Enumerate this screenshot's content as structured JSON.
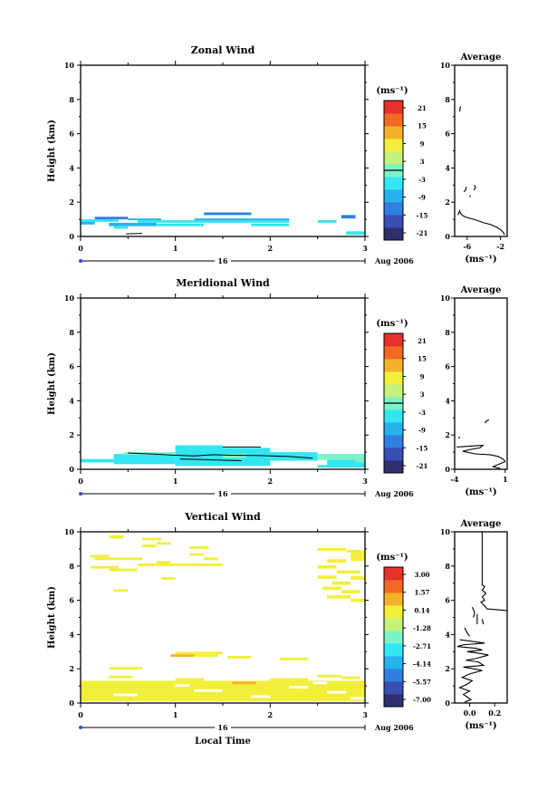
{
  "chart_data": [
    {
      "type": "heatmap",
      "title": "Zonal Wind",
      "ylabel": "Height (km)",
      "xlim": [
        0,
        3
      ],
      "ylim": [
        0,
        10
      ],
      "x_ticks": [
        "0",
        "1",
        "2",
        "3"
      ],
      "y_ticks": [
        "0",
        "2",
        "4",
        "6",
        "8",
        "10"
      ],
      "colorbar": {
        "unit": "(ms⁻¹)",
        "labels": [
          "21",
          "15",
          "9",
          "3",
          "-3",
          "-9",
          "-15",
          "-21"
        ],
        "range": [
          -24,
          24
        ],
        "zero_line": true
      },
      "cells": [
        {
          "x0": 0.0,
          "x1": 0.15,
          "y0": 0.7,
          "y1": 0.9,
          "v": -9
        },
        {
          "x0": 0.0,
          "x1": 0.4,
          "y0": 0.85,
          "y1": 1.0,
          "v": -6
        },
        {
          "x0": 0.15,
          "x1": 0.5,
          "y0": 1.0,
          "y1": 1.15,
          "v": -13
        },
        {
          "x0": 0.3,
          "x1": 0.8,
          "y0": 0.6,
          "y1": 0.8,
          "v": -7
        },
        {
          "x0": 0.35,
          "x1": 0.5,
          "y0": 0.45,
          "y1": 0.6,
          "v": -5
        },
        {
          "x0": 0.5,
          "x1": 0.85,
          "y0": 0.95,
          "y1": 1.05,
          "v": -10
        },
        {
          "x0": 0.6,
          "x1": 2.2,
          "y0": 0.8,
          "y1": 0.95,
          "v": -5
        },
        {
          "x0": 0.8,
          "x1": 1.3,
          "y0": 0.6,
          "y1": 0.75,
          "v": -4
        },
        {
          "x0": 1.3,
          "x1": 1.8,
          "y0": 1.25,
          "y1": 1.4,
          "v": -14
        },
        {
          "x0": 1.2,
          "x1": 2.2,
          "y0": 0.95,
          "y1": 1.05,
          "v": -9
        },
        {
          "x0": 1.8,
          "x1": 2.2,
          "y0": 0.6,
          "y1": 0.75,
          "v": -4
        },
        {
          "x0": 2.5,
          "x1": 2.7,
          "y0": 0.8,
          "y1": 0.95,
          "v": -6
        },
        {
          "x0": 2.75,
          "x1": 2.9,
          "y0": 1.05,
          "y1": 1.25,
          "v": -15
        },
        {
          "x0": 2.8,
          "x1": 3.0,
          "y0": 0.1,
          "y1": 0.3,
          "v": -5
        }
      ],
      "contours": [
        {
          "x": [
            0.48,
            0.65
          ],
          "y": [
            0.15,
            0.18
          ]
        }
      ],
      "average": {
        "title": "Average",
        "xlabel": "(ms⁻¹)",
        "x_ticks": [
          "-6",
          "-2"
        ],
        "x_tick_values": [
          -6,
          -2
        ],
        "xlim": [
          -7.5,
          -1.2
        ],
        "ylim": [
          0,
          10
        ],
        "y_ticks": [
          "0",
          "2",
          "4",
          "6",
          "8",
          "10"
        ],
        "segments": [
          {
            "x": [
              -6.9,
              -6.8
            ],
            "y": [
              7.3,
              7.6
            ]
          },
          {
            "x": [
              -6.4,
              -6.2,
              -6.1
            ],
            "y": [
              2.6,
              2.7,
              2.9
            ]
          },
          {
            "x": [
              -5.2,
              -5.0,
              -5.1
            ],
            "y": [
              2.7,
              2.85,
              3.0
            ]
          },
          {
            "x": [
              -5.7,
              -5.6
            ],
            "y": [
              2.3,
              2.4
            ]
          },
          {
            "x": [
              -7.1,
              -6.9,
              -6.8,
              -6.5,
              -6.0,
              -5.2,
              -4.6,
              -4.0,
              -3.2,
              -2.5,
              -2.0,
              -1.7,
              -1.5
            ],
            "y": [
              1.25,
              1.5,
              1.35,
              1.2,
              1.1,
              1.0,
              0.9,
              0.8,
              0.7,
              0.55,
              0.4,
              0.25,
              0.1
            ]
          }
        ]
      },
      "date_axis": {
        "label": "16",
        "suffix": "Aug 2006"
      }
    },
    {
      "type": "heatmap",
      "title": "Meridional Wind",
      "ylabel": "Height (km)",
      "xlim": [
        0,
        3
      ],
      "ylim": [
        0,
        10
      ],
      "x_ticks": [
        "0",
        "1",
        "2",
        "3"
      ],
      "y_ticks": [
        "0",
        "2",
        "4",
        "6",
        "8",
        "10"
      ],
      "colorbar": {
        "unit": "(ms⁻¹)",
        "labels": [
          "21",
          "15",
          "9",
          "3",
          "-3",
          "-9",
          "-15",
          "-21"
        ],
        "range": [
          -24,
          24
        ],
        "zero_line": true
      },
      "cells": [
        {
          "x0": 0.0,
          "x1": 0.35,
          "y0": 0.4,
          "y1": 0.6,
          "v": -4
        },
        {
          "x0": 0.35,
          "x1": 1.0,
          "y0": 0.3,
          "y1": 0.9,
          "v": -4
        },
        {
          "x0": 0.45,
          "x1": 1.0,
          "y0": 0.85,
          "y1": 1.0,
          "v": 0
        },
        {
          "x0": 1.0,
          "x1": 2.0,
          "y0": 0.2,
          "y1": 1.25,
          "v": -4
        },
        {
          "x0": 1.0,
          "x1": 1.5,
          "y0": 1.2,
          "y1": 1.4,
          "v": -6
        },
        {
          "x0": 1.5,
          "x1": 1.75,
          "y0": 0.65,
          "y1": 0.9,
          "v": 1
        },
        {
          "x0": 2.0,
          "x1": 2.5,
          "y0": 0.5,
          "y1": 1.0,
          "v": -4
        },
        {
          "x0": 2.5,
          "x1": 2.9,
          "y0": 0.55,
          "y1": 0.9,
          "v": 2
        },
        {
          "x0": 2.6,
          "x1": 3.0,
          "y0": 0.2,
          "y1": 0.55,
          "v": -4
        },
        {
          "x0": 2.9,
          "x1": 3.0,
          "y0": 0.4,
          "y1": 0.9,
          "v": 1
        },
        {
          "x0": 2.5,
          "x1": 3.0,
          "y0": 0.1,
          "y1": 0.25,
          "v": -5
        }
      ],
      "contours": [
        {
          "x": [
            0.5,
            0.8,
            1.0,
            1.2,
            1.4,
            1.6,
            1.9,
            2.2,
            2.45
          ],
          "y": [
            0.95,
            0.88,
            0.82,
            0.78,
            0.85,
            0.82,
            0.8,
            0.75,
            0.65
          ]
        },
        {
          "x": [
            1.5,
            1.9
          ],
          "y": [
            1.3,
            1.3
          ]
        },
        {
          "x": [
            1.05,
            1.4,
            1.7
          ],
          "y": [
            0.6,
            0.55,
            0.5
          ]
        }
      ],
      "average": {
        "title": "Average",
        "xlabel": "(ms⁻¹)",
        "x_ticks": [
          "-4",
          "1"
        ],
        "x_tick_values": [
          -4,
          1
        ],
        "xlim": [
          -4,
          1.2
        ],
        "ylim": [
          0,
          10
        ],
        "y_ticks": [
          "0",
          "2",
          "4",
          "6",
          "8",
          "10"
        ],
        "segments": [
          {
            "x": [
              -3.6,
              -3.5
            ],
            "y": [
              1.8,
              1.9
            ]
          },
          {
            "x": [
              -1.0,
              -0.9,
              -0.6
            ],
            "y": [
              2.7,
              2.8,
              2.9
            ]
          },
          {
            "x": [
              -3.8,
              -2.5,
              -1.2,
              -1.5,
              -2.5,
              -3.2,
              -2.0,
              -0.5,
              0.3,
              0.8,
              1.0,
              0.6,
              0.2,
              -0.2,
              0.5
            ],
            "y": [
              1.3,
              1.35,
              1.4,
              1.25,
              1.15,
              1.05,
              0.9,
              0.85,
              0.75,
              0.6,
              0.45,
              0.35,
              0.25,
              0.15,
              0.05
            ]
          }
        ]
      },
      "date_axis": {
        "label": "16",
        "suffix": "Aug 2006"
      }
    },
    {
      "type": "heatmap",
      "title": "Vertical Wind",
      "ylabel": "Height (km)",
      "xlabel": "Local Time",
      "xlim": [
        0,
        3
      ],
      "ylim": [
        0,
        10
      ],
      "x_ticks": [
        "0",
        "1",
        "2",
        "3"
      ],
      "y_ticks": [
        "0",
        "2",
        "4",
        "6",
        "8",
        "10"
      ],
      "colorbar": {
        "unit": "(ms⁻¹)",
        "labels": [
          "3.00",
          "1.57",
          "0.14",
          "-1.28",
          "-2.71",
          "-4.14",
          "-5.57",
          "-7.00"
        ],
        "range": [
          -7.71,
          3.71
        ],
        "zero_line": false
      },
      "cells": [
        {
          "x0": 0.3,
          "x1": 0.45,
          "y0": 9.6,
          "y1": 9.8,
          "v": 0.5
        },
        {
          "x0": 0.65,
          "x1": 0.85,
          "y0": 9.5,
          "y1": 9.65,
          "v": 0.5
        },
        {
          "x0": 0.65,
          "x1": 0.8,
          "y0": 9.1,
          "y1": 9.25,
          "v": 0.5
        },
        {
          "x0": 0.8,
          "x1": 0.95,
          "y0": 9.25,
          "y1": 9.4,
          "v": 0.5
        },
        {
          "x0": 0.1,
          "x1": 0.3,
          "y0": 8.5,
          "y1": 8.65,
          "v": 0.5
        },
        {
          "x0": 0.15,
          "x1": 0.65,
          "y0": 8.35,
          "y1": 8.5,
          "v": 0.5
        },
        {
          "x0": 0.6,
          "x1": 1.5,
          "y0": 8.0,
          "y1": 8.15,
          "v": 0.5
        },
        {
          "x0": 0.8,
          "x1": 0.95,
          "y0": 8.15,
          "y1": 8.3,
          "v": 0.5
        },
        {
          "x0": 0.1,
          "x1": 0.4,
          "y0": 7.85,
          "y1": 8.0,
          "v": 0.5
        },
        {
          "x0": 0.3,
          "x1": 0.6,
          "y0": 7.7,
          "y1": 7.85,
          "v": 0.5
        },
        {
          "x0": 1.15,
          "x1": 1.35,
          "y0": 9.0,
          "y1": 9.15,
          "v": 0.5
        },
        {
          "x0": 1.15,
          "x1": 1.3,
          "y0": 8.6,
          "y1": 8.75,
          "v": 0.5
        },
        {
          "x0": 1.3,
          "x1": 1.45,
          "y0": 8.35,
          "y1": 8.5,
          "v": 0.5
        },
        {
          "x0": 0.85,
          "x1": 1.0,
          "y0": 7.2,
          "y1": 7.35,
          "v": 0.5
        },
        {
          "x0": 0.35,
          "x1": 0.5,
          "y0": 6.5,
          "y1": 6.65,
          "v": 0.5
        },
        {
          "x0": 2.5,
          "x1": 2.8,
          "y0": 8.9,
          "y1": 9.05,
          "v": 0.5
        },
        {
          "x0": 2.8,
          "x1": 2.95,
          "y0": 8.8,
          "y1": 8.95,
          "v": 0.5
        },
        {
          "x0": 2.85,
          "x1": 3.0,
          "y0": 8.3,
          "y1": 8.9,
          "v": 0.5
        },
        {
          "x0": 2.6,
          "x1": 2.8,
          "y0": 8.2,
          "y1": 8.4,
          "v": 0.5
        },
        {
          "x0": 2.5,
          "x1": 2.7,
          "y0": 7.85,
          "y1": 8.05,
          "v": 0.5
        },
        {
          "x0": 2.7,
          "x1": 2.95,
          "y0": 7.55,
          "y1": 7.75,
          "v": 0.5
        },
        {
          "x0": 2.5,
          "x1": 2.7,
          "y0": 7.25,
          "y1": 7.45,
          "v": 0.5
        },
        {
          "x0": 2.85,
          "x1": 3.0,
          "y0": 7.2,
          "y1": 7.4,
          "v": 0.5
        },
        {
          "x0": 2.65,
          "x1": 2.85,
          "y0": 6.9,
          "y1": 7.1,
          "v": 0.5
        },
        {
          "x0": 2.55,
          "x1": 2.75,
          "y0": 6.6,
          "y1": 6.8,
          "v": 0.5
        },
        {
          "x0": 2.75,
          "x1": 2.95,
          "y0": 6.4,
          "y1": 6.6,
          "v": 0.5
        },
        {
          "x0": 2.6,
          "x1": 2.85,
          "y0": 6.1,
          "y1": 6.3,
          "v": 0.5
        },
        {
          "x0": 2.85,
          "x1": 3.0,
          "y0": 5.9,
          "y1": 6.1,
          "v": 0.5
        },
        {
          "x0": 1.0,
          "x1": 1.5,
          "y0": 2.85,
          "y1": 3.0,
          "v": 0.5
        },
        {
          "x0": 0.95,
          "x1": 1.2,
          "y0": 2.7,
          "y1": 2.85,
          "v": 1.6
        },
        {
          "x0": 1.2,
          "x1": 1.45,
          "y0": 2.7,
          "y1": 2.85,
          "v": 0.5
        },
        {
          "x0": 1.55,
          "x1": 1.8,
          "y0": 2.6,
          "y1": 2.75,
          "v": 0.5
        },
        {
          "x0": 2.1,
          "x1": 2.4,
          "y0": 2.5,
          "y1": 2.65,
          "v": 0.5
        },
        {
          "x0": 0.3,
          "x1": 0.65,
          "y0": 1.95,
          "y1": 2.1,
          "v": 0.5
        },
        {
          "x0": 0.0,
          "x1": 3.0,
          "y0": 0.1,
          "y1": 1.3,
          "v": 0.5
        },
        {
          "x0": 0.3,
          "x1": 0.55,
          "y0": 1.45,
          "y1": 1.6,
          "v": 0.5
        },
        {
          "x0": 1.0,
          "x1": 1.3,
          "y0": 1.3,
          "y1": 1.45,
          "v": 0.5
        },
        {
          "x0": 2.0,
          "x1": 2.4,
          "y0": 1.3,
          "y1": 1.45,
          "v": 0.5
        },
        {
          "x0": 2.5,
          "x1": 2.75,
          "y0": 1.5,
          "y1": 1.65,
          "v": 0.5
        },
        {
          "x0": 2.75,
          "x1": 2.95,
          "y0": 1.4,
          "y1": 1.55,
          "v": 0.5
        },
        {
          "x0": 1.6,
          "x1": 1.85,
          "y0": 1.1,
          "y1": 1.25,
          "v": 1.0
        }
      ],
      "holes": [
        {
          "x0": 0.35,
          "x1": 0.6,
          "y0": 0.4,
          "y1": 0.55
        },
        {
          "x0": 1.0,
          "x1": 1.15,
          "y0": 0.95,
          "y1": 1.1
        },
        {
          "x0": 1.2,
          "x1": 1.5,
          "y0": 0.65,
          "y1": 0.8
        },
        {
          "x0": 1.8,
          "x1": 2.0,
          "y0": 0.3,
          "y1": 0.45
        },
        {
          "x0": 2.2,
          "x1": 2.4,
          "y0": 0.85,
          "y1": 1.0
        },
        {
          "x0": 2.6,
          "x1": 2.8,
          "y0": 0.55,
          "y1": 0.7
        },
        {
          "x0": 2.45,
          "x1": 2.6,
          "y0": 1.1,
          "y1": 1.25
        },
        {
          "x0": 2.85,
          "x1": 3.0,
          "y0": 0.2,
          "y1": 0.35
        }
      ],
      "contours": [],
      "average": {
        "title": "Average",
        "xlabel": "(ms⁻¹)",
        "x_ticks": [
          "0.0",
          "0.2"
        ],
        "x_tick_values": [
          0.0,
          0.2
        ],
        "xlim": [
          -0.12,
          0.3
        ],
        "ylim": [
          0,
          10
        ],
        "y_ticks": [
          "0",
          "2",
          "4",
          "6",
          "8",
          "10"
        ],
        "segments": [
          {
            "x": [
              0.1,
              0.1,
              0.12,
              0.1,
              0.13,
              0.1,
              0.12,
              0.09,
              0.14,
              0.3
            ],
            "y": [
              10.0,
              6.9,
              6.8,
              6.6,
              6.4,
              6.2,
              6.0,
              5.9,
              5.5,
              5.4
            ]
          },
          {
            "x": [
              0.02,
              0.04,
              0.03
            ],
            "y": [
              5.6,
              5.3,
              5.0
            ]
          },
          {
            "x": [
              0.06,
              0.06
            ],
            "y": [
              5.2,
              4.6
            ]
          },
          {
            "x": [
              0.1,
              0.11
            ],
            "y": [
              4.9,
              4.6
            ]
          },
          {
            "x": [
              -0.04,
              -0.02,
              0.0
            ],
            "y": [
              4.4,
              4.1,
              3.9
            ]
          },
          {
            "x": [
              -0.08,
              0.02,
              0.12,
              -0.05,
              -0.1,
              0.05,
              0.1,
              -0.02,
              0.08,
              0.15,
              0.05,
              -0.03,
              0.07,
              0.11,
              -0.05,
              0.03,
              0.1,
              0.0,
              -0.06,
              0.02,
              -0.02,
              -0.08,
              0.0,
              -0.05,
              -0.02,
              0.01,
              -0.04
            ],
            "y": [
              3.7,
              3.6,
              3.5,
              3.4,
              3.3,
              3.2,
              3.1,
              3.0,
              2.9,
              2.8,
              2.6,
              2.5,
              2.4,
              2.2,
              2.1,
              2.0,
              1.9,
              1.7,
              1.5,
              1.3,
              1.1,
              0.9,
              0.7,
              0.5,
              0.35,
              0.2,
              0.05
            ]
          }
        ]
      },
      "date_axis": {
        "label": "16",
        "suffix": "Aug 2006"
      }
    }
  ]
}
